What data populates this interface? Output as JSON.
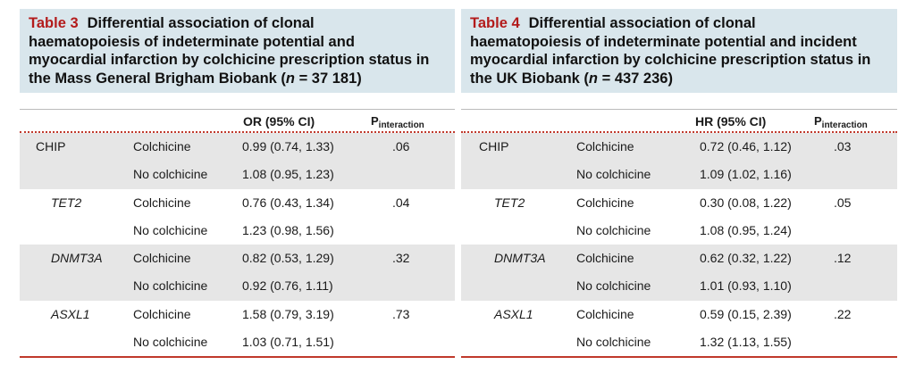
{
  "tables": [
    {
      "id": "left",
      "number": "Table 3",
      "caption_lines": [
        "Differential association of clonal",
        "haematopoiesis of indeterminate potential and",
        "myocardial infarction by colchicine prescription status in",
        "the Mass General Brigham Biobank ("
      ],
      "n_italic": "n",
      "n_value": " = 37 181)",
      "headers": {
        "effect": "OR (95% CI)",
        "p_main": "P",
        "p_sub": "interaction"
      },
      "groups": [
        {
          "gene": "CHIP",
          "italic": false,
          "p": ".06",
          "rows": [
            {
              "status": "Colchicine",
              "value": "0.99 (0.74, 1.33)"
            },
            {
              "status": "No colchicine",
              "value": "1.08 (0.95, 1.23)"
            }
          ]
        },
        {
          "gene": "TET2",
          "italic": true,
          "p": ".04",
          "rows": [
            {
              "status": "Colchicine",
              "value": "0.76 (0.43, 1.34)"
            },
            {
              "status": "No colchicine",
              "value": "1.23 (0.98, 1.56)"
            }
          ]
        },
        {
          "gene": "DNMT3A",
          "italic": true,
          "p": ".32",
          "rows": [
            {
              "status": "Colchicine",
              "value": "0.82 (0.53, 1.29)"
            },
            {
              "status": "No colchicine",
              "value": "0.92 (0.76, 1.11)"
            }
          ]
        },
        {
          "gene": "ASXL1",
          "italic": true,
          "p": ".73",
          "rows": [
            {
              "status": "Colchicine",
              "value": "1.58 (0.79, 3.19)"
            },
            {
              "status": "No colchicine",
              "value": "1.03 (0.71, 1.51)"
            }
          ]
        }
      ]
    },
    {
      "id": "right",
      "number": "Table 4",
      "caption_lines": [
        "Differential association of clonal",
        "haematopoiesis of indeterminate potential and incident",
        "myocardial infarction by colchicine prescription status in",
        "the UK Biobank ("
      ],
      "n_italic": "n",
      "n_value": " = 437 236)",
      "headers": {
        "effect": "HR (95% CI)",
        "p_main": "P",
        "p_sub": "interaction"
      },
      "groups": [
        {
          "gene": "CHIP",
          "italic": false,
          "p": ".03",
          "rows": [
            {
              "status": "Colchicine",
              "value": "0.72 (0.46, 1.12)"
            },
            {
              "status": "No colchicine",
              "value": "1.09 (1.02, 1.16)"
            }
          ]
        },
        {
          "gene": "TET2",
          "italic": true,
          "p": ".05",
          "rows": [
            {
              "status": "Colchicine",
              "value": "0.30 (0.08, 1.22)"
            },
            {
              "status": "No colchicine",
              "value": "1.08 (0.95, 1.24)"
            }
          ]
        },
        {
          "gene": "DNMT3A",
          "italic": true,
          "p": ".12",
          "rows": [
            {
              "status": "Colchicine",
              "value": "0.62 (0.32, 1.22)"
            },
            {
              "status": "No colchicine",
              "value": "1.01 (0.93, 1.10)"
            }
          ]
        },
        {
          "gene": "ASXL1",
          "italic": true,
          "p": ".22",
          "rows": [
            {
              "status": "Colchicine",
              "value": "0.59 (0.15, 2.39)"
            },
            {
              "status": "No colchicine",
              "value": "1.32 (1.13, 1.55)"
            }
          ]
        }
      ]
    }
  ],
  "colors": {
    "caption_bg": "#d9e6ec",
    "table_number": "#b31b1b",
    "rule": "#c0392b",
    "shaded_row": "#e6e6e6"
  }
}
